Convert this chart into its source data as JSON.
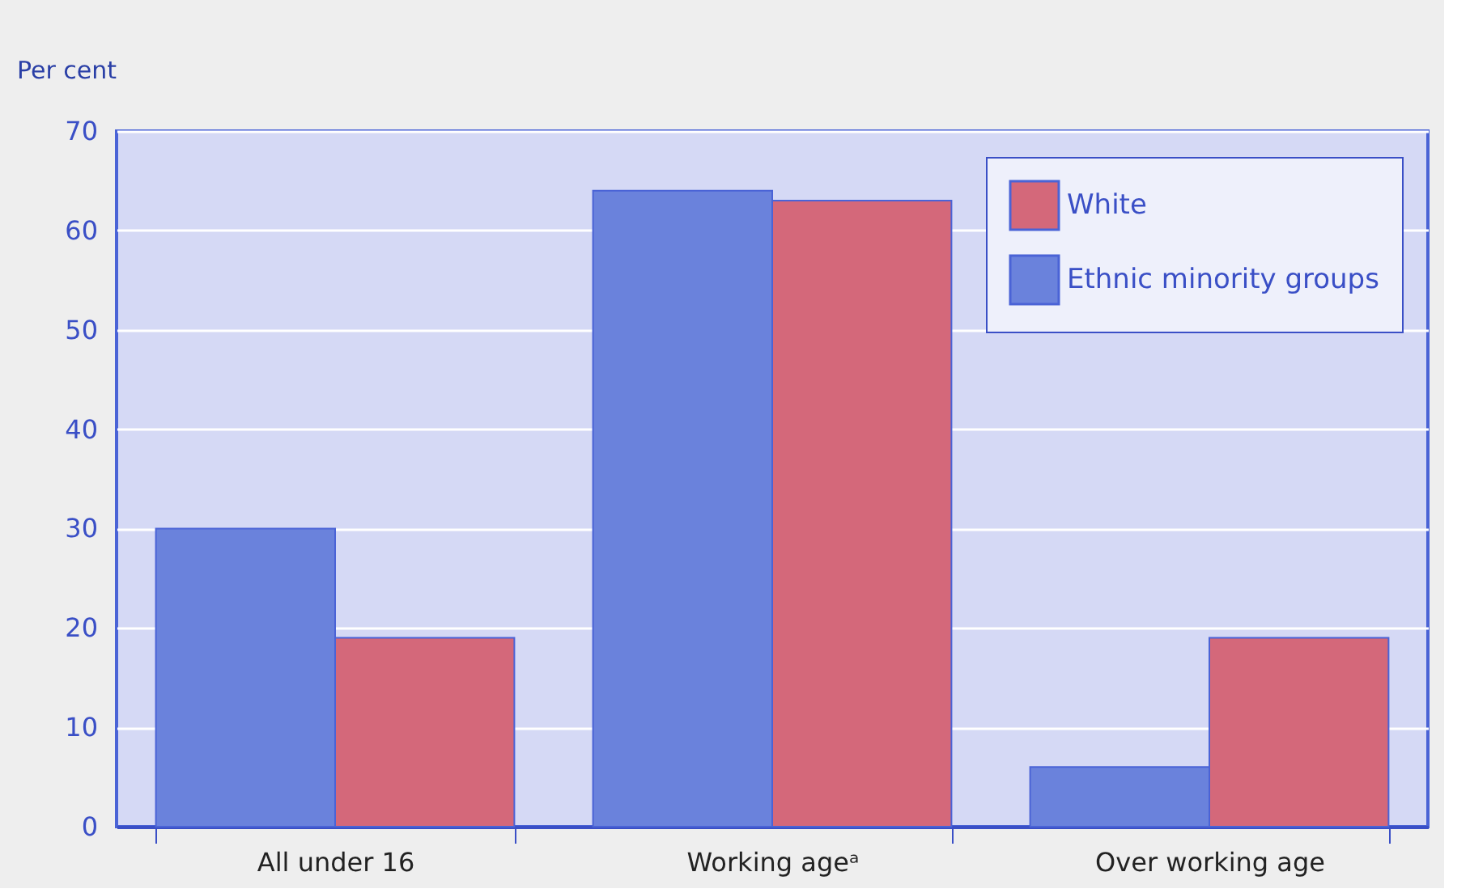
{
  "chart_data": {
    "type": "bar",
    "ylabel": "Per cent",
    "categories": [
      "All under 16",
      "Working ageᵃ",
      "Over working age"
    ],
    "series": [
      {
        "name": "Ethnic minority groups",
        "color": "#6a82dc",
        "values": [
          30,
          64,
          6
        ]
      },
      {
        "name": "White",
        "color": "#d4687a",
        "values": [
          19,
          63,
          19
        ]
      }
    ],
    "ylim": [
      0,
      70
    ],
    "yticks": [
      0,
      10,
      20,
      30,
      40,
      50,
      60,
      70
    ],
    "grid": "y",
    "legend": "top right"
  }
}
